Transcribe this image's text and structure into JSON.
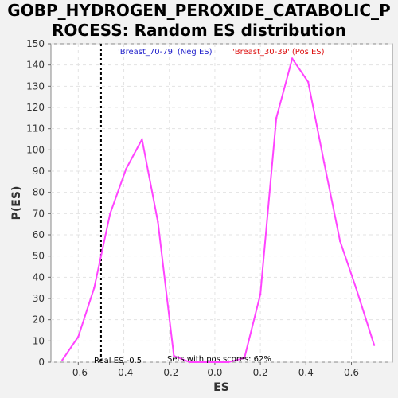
{
  "chart_data": {
    "type": "line",
    "title_line1": "GOBP_HYDROGEN_PEROXIDE_CATABOLIC_P",
    "title_line2": "ROCESS: Random ES distribution",
    "xlabel": "ES",
    "ylabel": "P(ES)",
    "xlim": [
      -0.72,
      0.78
    ],
    "ylim": [
      0,
      150
    ],
    "x_ticks": [
      -0.6,
      -0.4,
      -0.2,
      0.0,
      0.2,
      0.4,
      0.6
    ],
    "x_tick_labels": [
      "-0.6",
      "-0.4",
      "-0.2",
      "0.0",
      "0.2",
      "0.4",
      "0.6"
    ],
    "y_ticks": [
      0,
      10,
      20,
      30,
      40,
      50,
      60,
      70,
      80,
      90,
      100,
      110,
      120,
      130,
      140,
      150
    ],
    "grid": true,
    "series": [
      {
        "color": "#ff44ff",
        "x": [
          -0.67,
          -0.6,
          -0.53,
          -0.46,
          -0.39,
          -0.32,
          -0.25,
          -0.18,
          -0.11,
          0.06,
          0.13,
          0.2,
          0.27,
          0.34,
          0.41,
          0.48,
          0.55,
          0.62,
          0.7
        ],
        "y": [
          1,
          12,
          35,
          70,
          91,
          105,
          66,
          3,
          0,
          0,
          2,
          32,
          115,
          143,
          132,
          94,
          57,
          35,
          8
        ]
      }
    ],
    "real_es": {
      "x": -0.5,
      "label": "Real ES -0.5"
    },
    "annotations": {
      "neg_label": "'Breast_70-79' (Neg ES)",
      "neg_color": "#2222cc",
      "pos_label": "'Breast_30-39' (Pos ES)",
      "pos_color": "#dd1111",
      "pos_scores": "Sets with pos scores: 62%"
    }
  }
}
